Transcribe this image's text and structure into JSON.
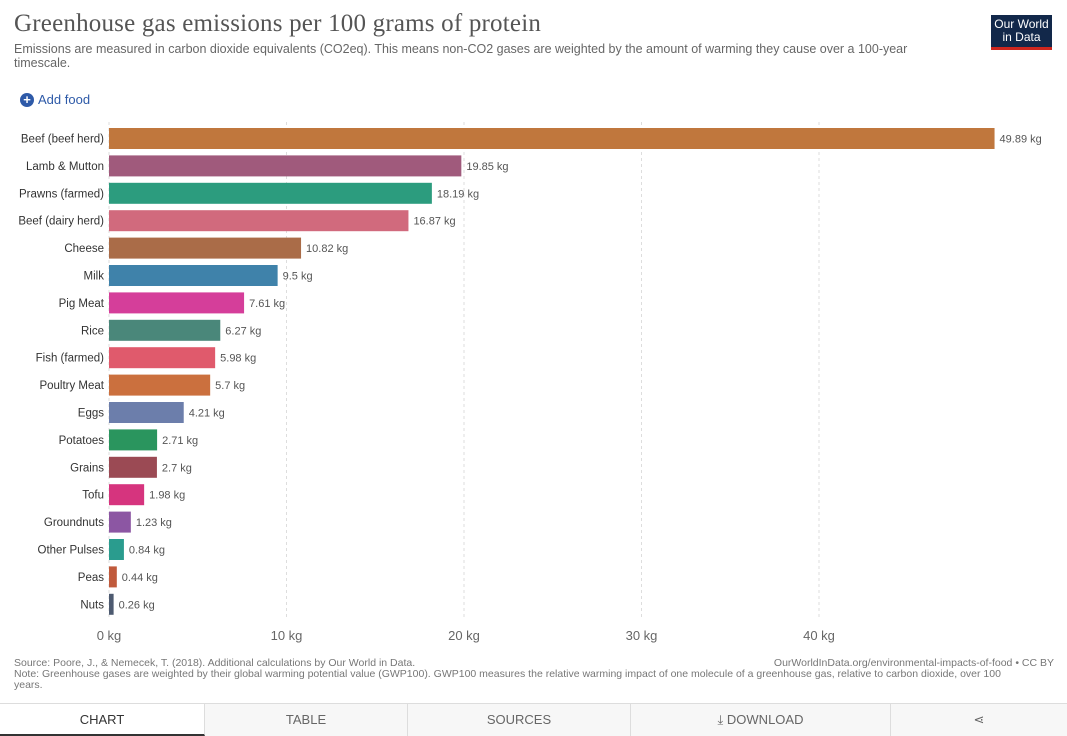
{
  "header": {
    "title": "Greenhouse gas emissions per 100 grams of protein",
    "subtitle": "Emissions are measured in carbon dioxide equivalents (CO2eq). This means non-CO2 gases are weighted by the amount of warming they cause over a 100-year timescale."
  },
  "logo": {
    "line1": "Our World",
    "line2": "in Data",
    "bg": "#12284a",
    "accent": "#ce261e"
  },
  "controls": {
    "add_food": "Add food"
  },
  "chart_data": {
    "type": "bar",
    "orientation": "horizontal",
    "title": "Greenhouse gas emissions per 100 grams of protein",
    "unit": "kg",
    "categories": [
      "Beef (beef herd)",
      "Lamb & Mutton",
      "Prawns (farmed)",
      "Beef (dairy herd)",
      "Cheese",
      "Milk",
      "Pig Meat",
      "Rice",
      "Fish (farmed)",
      "Poultry Meat",
      "Eggs",
      "Potatoes",
      "Grains",
      "Tofu",
      "Groundnuts",
      "Other Pulses",
      "Peas",
      "Nuts"
    ],
    "values": [
      49.89,
      19.85,
      18.19,
      16.87,
      10.82,
      9.5,
      7.61,
      6.27,
      5.98,
      5.7,
      4.21,
      2.71,
      2.7,
      1.98,
      1.23,
      0.84,
      0.44,
      0.26
    ],
    "value_labels": [
      "49.89 kg",
      "19.85 kg",
      "18.19 kg",
      "16.87 kg",
      "10.82 kg",
      "9.5 kg",
      "7.61 kg",
      "6.27 kg",
      "5.98 kg",
      "5.7 kg",
      "4.21 kg",
      "2.71 kg",
      "2.7 kg",
      "1.98 kg",
      "1.23 kg",
      "0.84 kg",
      "0.44 kg",
      "0.26 kg"
    ],
    "colors": [
      "#c0773d",
      "#a05a7c",
      "#2c9c7e",
      "#d16a7d",
      "#aa6c48",
      "#3f82aa",
      "#d53e9a",
      "#4a877a",
      "#e05a6c",
      "#cb703e",
      "#6c7eab",
      "#2a955e",
      "#9b4a54",
      "#d6347e",
      "#8c56a3",
      "#2a9c8e",
      "#c05a3c",
      "#4d5a70"
    ],
    "x_ticks": [
      0,
      10,
      20,
      30,
      40
    ],
    "x_tick_labels": [
      "0 kg",
      "10 kg",
      "20 kg",
      "30 kg",
      "40 kg"
    ],
    "xlim": [
      0,
      50
    ],
    "grid": true
  },
  "footer": {
    "source": "Source: Poore, J., & Nemecek, T. (2018). Additional calculations by Our World in Data.",
    "url": "OurWorldInData.org/environmental-impacts-of-food • CC BY",
    "note": "Note: Greenhouse gases are weighted by their global warming potential value (GWP100). GWP100 measures the relative warming impact of one molecule of a greenhouse gas, relative to carbon dioxide, over 100 years."
  },
  "tabs": {
    "chart": "CHART",
    "table": "TABLE",
    "sources": "SOURCES",
    "download": "DOWNLOAD"
  }
}
